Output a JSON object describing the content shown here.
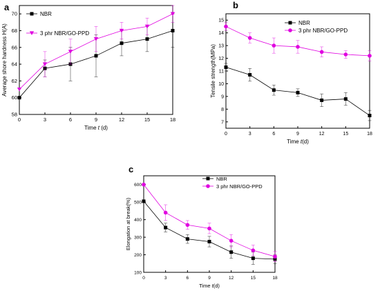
{
  "chart_data": [
    {
      "panel": "a",
      "type": "line",
      "xlabel_prefix": "Time ",
      "xlabel_var": "t",
      "xlabel_suffix": " (d)",
      "ylabel": "Average shore hardness H(A)",
      "x": [
        0,
        3,
        6,
        9,
        12,
        15,
        18
      ],
      "xlim": [
        0,
        18
      ],
      "ylim": [
        58,
        71
      ],
      "xticks": [
        "0",
        "3",
        "6",
        "9",
        "12",
        "15",
        "18"
      ],
      "yticks": [
        "58",
        "60",
        "62",
        "64",
        "66",
        "68",
        "70"
      ],
      "legend_position": "top-left",
      "series": [
        {
          "name": "NBR",
          "marker": "square",
          "color": "#000000",
          "values": [
            60.0,
            63.5,
            64.0,
            65.0,
            66.5,
            67.0,
            68.0
          ],
          "errors": [
            0.0,
            1.0,
            2.0,
            2.5,
            1.5,
            1.5,
            2.0
          ]
        },
        {
          "name": "3 phr NBR/GO-PPD",
          "marker": "triangle-down",
          "color": "#e000e0",
          "values": [
            61.0,
            64.0,
            65.5,
            67.0,
            68.0,
            68.5,
            70.0
          ],
          "errors": [
            0.0,
            1.5,
            1.5,
            1.5,
            1.0,
            1.0,
            1.0
          ]
        }
      ]
    },
    {
      "panel": "b",
      "type": "line",
      "xlabel_prefix": "Time ",
      "xlabel_var": "t",
      "xlabel_suffix": "(d)",
      "ylabel": "Tensile strength(MPa)",
      "x": [
        0,
        3,
        6,
        9,
        12,
        15,
        18
      ],
      "xlim": [
        0,
        18
      ],
      "ylim": [
        6.5,
        15.5
      ],
      "xticks": [
        "0",
        "3",
        "6",
        "9",
        "12",
        "15",
        "18"
      ],
      "yticks": [
        "7",
        "8",
        "9",
        "10",
        "11",
        "12",
        "13",
        "14",
        "15"
      ],
      "legend_position": "top-right",
      "series": [
        {
          "name": "NBR",
          "marker": "square",
          "color": "#000000",
          "values": [
            11.3,
            10.7,
            9.5,
            9.3,
            8.7,
            8.8,
            7.5
          ],
          "errors": [
            0.3,
            0.5,
            0.4,
            0.3,
            0.5,
            0.5,
            0.4
          ]
        },
        {
          "name": "3 phr NBR/GO-PPD",
          "marker": "circle",
          "color": "#e000e0",
          "values": [
            14.5,
            13.6,
            13.0,
            12.9,
            12.5,
            12.3,
            12.2
          ],
          "errors": [
            0.3,
            0.4,
            0.6,
            0.5,
            0.4,
            0.3,
            0.4
          ]
        }
      ]
    },
    {
      "panel": "c",
      "type": "line",
      "xlabel_prefix": "Time ",
      "xlabel_var": "t",
      "xlabel_suffix": "(d)",
      "ylabel": "Elongation at break(%)",
      "x": [
        0,
        3,
        6,
        9,
        12,
        15,
        18
      ],
      "xlim": [
        0,
        18
      ],
      "ylim": [
        100,
        650
      ],
      "xticks": [
        "0",
        "3",
        "6",
        "9",
        "12",
        "15",
        "18"
      ],
      "yticks": [
        "100",
        "200",
        "300",
        "400",
        "500",
        "600"
      ],
      "legend_position": "top-right",
      "series": [
        {
          "name": "NBR",
          "marker": "square",
          "color": "#000000",
          "values": [
            505,
            355,
            290,
            275,
            215,
            180,
            175
          ],
          "errors": [
            0,
            25,
            25,
            30,
            35,
            35,
            25
          ]
        },
        {
          "name": "3 phr NBR/GO-PPD",
          "marker": "circle",
          "color": "#e000e0",
          "values": [
            600,
            440,
            370,
            350,
            280,
            225,
            190
          ],
          "errors": [
            0,
            45,
            25,
            30,
            35,
            30,
            30
          ]
        }
      ]
    }
  ]
}
